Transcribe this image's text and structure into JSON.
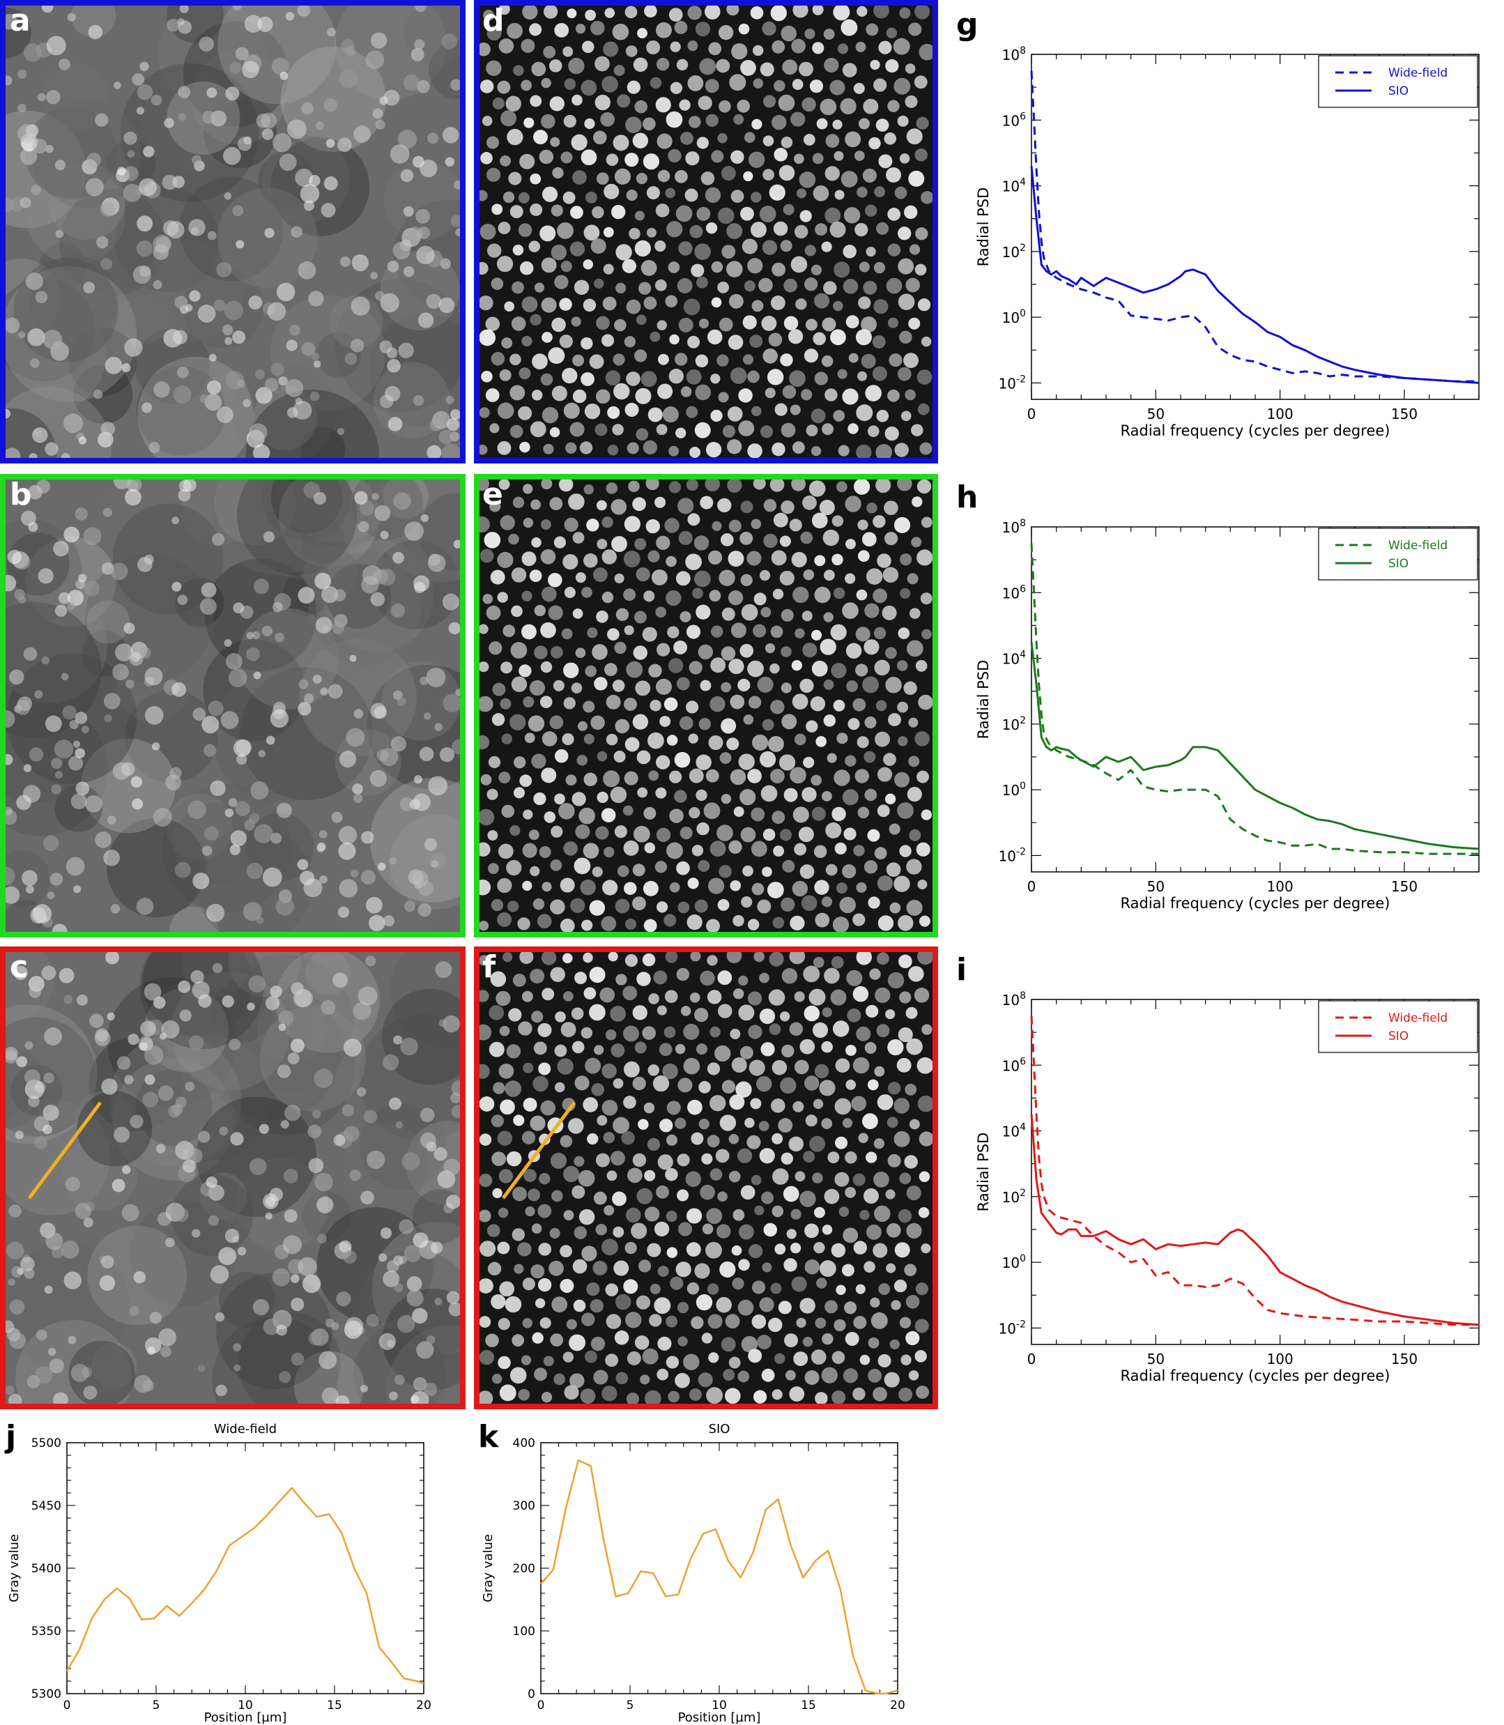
{
  "panels": {
    "a": {
      "label": "a",
      "border": "#1010d8"
    },
    "b": {
      "label": "b",
      "border": "#22d822"
    },
    "c": {
      "label": "c",
      "border": "#e01818"
    },
    "d": {
      "label": "d",
      "border": "#1010d8"
    },
    "e": {
      "label": "e",
      "border": "#22d822"
    },
    "f": {
      "label": "f",
      "border": "#e01818"
    },
    "g": {
      "label": "g"
    },
    "h": {
      "label": "h"
    },
    "i": {
      "label": "i"
    },
    "j": {
      "label": "j"
    },
    "k": {
      "label": "k"
    }
  },
  "profile_line_color": "#f0b020",
  "chart_data": [
    {
      "id": "g",
      "type": "line",
      "color": "#1010d0",
      "xlabel": "Radial frequency (cycles per degree)",
      "ylabel": "Radial PSD",
      "xlim": [
        0,
        180
      ],
      "ylim_log10": [
        -2.5,
        8
      ],
      "yscale": "log",
      "xticks": [
        0,
        50,
        100,
        150
      ],
      "yticks_exp": [
        -2,
        0,
        2,
        4,
        6,
        8
      ],
      "legend_position": "top-right",
      "series": [
        {
          "name": "Wide-field",
          "style": "dashed",
          "x": [
            0,
            1,
            2,
            3,
            4,
            5,
            7,
            10,
            15,
            20,
            25,
            30,
            35,
            40,
            45,
            50,
            55,
            60,
            65,
            70,
            75,
            80,
            85,
            90,
            95,
            100,
            105,
            110,
            115,
            120,
            125,
            130,
            140,
            150,
            160,
            170,
            180
          ],
          "y_log10": [
            7.5,
            6.0,
            4.5,
            3.2,
            2.3,
            1.8,
            1.4,
            1.2,
            1.0,
            0.85,
            0.75,
            0.6,
            0.5,
            0.05,
            0.0,
            -0.05,
            -0.1,
            0.0,
            0.05,
            -0.3,
            -0.9,
            -1.15,
            -1.3,
            -1.35,
            -1.5,
            -1.6,
            -1.7,
            -1.65,
            -1.7,
            -1.8,
            -1.75,
            -1.8,
            -1.8,
            -1.85,
            -1.9,
            -1.95,
            -1.95
          ]
        },
        {
          "name": "SIO",
          "style": "solid",
          "x": [
            0,
            2,
            4,
            6,
            8,
            10,
            12,
            15,
            18,
            20,
            25,
            30,
            35,
            40,
            45,
            50,
            55,
            60,
            62,
            65,
            70,
            75,
            80,
            85,
            90,
            95,
            100,
            105,
            110,
            115,
            120,
            125,
            130,
            140,
            150,
            160,
            170,
            180
          ],
          "y_log10": [
            4.6,
            3.0,
            1.6,
            1.4,
            1.3,
            1.4,
            1.25,
            1.15,
            1.0,
            1.2,
            0.95,
            1.2,
            1.05,
            0.9,
            0.75,
            0.85,
            1.0,
            1.25,
            1.4,
            1.45,
            1.3,
            0.8,
            0.45,
            0.1,
            -0.15,
            -0.45,
            -0.6,
            -0.85,
            -1.0,
            -1.2,
            -1.35,
            -1.5,
            -1.6,
            -1.75,
            -1.85,
            -1.9,
            -1.95,
            -2.0
          ]
        }
      ]
    },
    {
      "id": "h",
      "type": "line",
      "color": "#1a7a1a",
      "xlabel": "Radial frequency (cycles per degree)",
      "ylabel": "Radial PSD",
      "xlim": [
        0,
        180
      ],
      "ylim_log10": [
        -2.5,
        8
      ],
      "yscale": "log",
      "xticks": [
        0,
        50,
        100,
        150
      ],
      "yticks_exp": [
        -2,
        0,
        2,
        4,
        6,
        8
      ],
      "legend_position": "top-right",
      "series": [
        {
          "name": "Wide-field",
          "style": "dashed",
          "x": [
            0,
            1,
            2,
            3,
            4,
            5,
            7,
            10,
            15,
            20,
            25,
            30,
            35,
            40,
            45,
            50,
            55,
            60,
            65,
            70,
            75,
            80,
            85,
            90,
            95,
            100,
            105,
            110,
            115,
            120,
            125,
            130,
            140,
            150,
            160,
            170,
            180
          ],
          "y_log10": [
            7.5,
            6.0,
            4.5,
            3.2,
            2.3,
            1.7,
            1.4,
            1.2,
            1.0,
            0.9,
            0.75,
            0.5,
            0.3,
            0.6,
            0.1,
            0.0,
            -0.05,
            0.0,
            0.0,
            0.0,
            -0.2,
            -0.9,
            -1.2,
            -1.4,
            -1.55,
            -1.6,
            -1.7,
            -1.7,
            -1.65,
            -1.8,
            -1.8,
            -1.85,
            -1.9,
            -1.9,
            -1.95,
            -1.95,
            -1.95
          ]
        },
        {
          "name": "SIO",
          "style": "solid",
          "x": [
            0,
            2,
            4,
            6,
            8,
            10,
            12,
            15,
            18,
            20,
            25,
            30,
            35,
            40,
            45,
            50,
            55,
            60,
            62,
            65,
            70,
            75,
            80,
            85,
            90,
            95,
            100,
            105,
            110,
            115,
            120,
            125,
            130,
            140,
            150,
            160,
            170,
            180
          ],
          "y_log10": [
            4.5,
            3.2,
            1.6,
            1.3,
            1.2,
            1.3,
            1.25,
            1.2,
            1.0,
            0.9,
            0.7,
            1.0,
            0.85,
            1.0,
            0.6,
            0.7,
            0.75,
            0.9,
            1.0,
            1.3,
            1.3,
            1.2,
            0.8,
            0.4,
            0.0,
            -0.2,
            -0.4,
            -0.55,
            -0.75,
            -0.9,
            -0.95,
            -1.05,
            -1.2,
            -1.35,
            -1.5,
            -1.65,
            -1.75,
            -1.8
          ]
        }
      ]
    },
    {
      "id": "i",
      "type": "line",
      "color": "#e01818",
      "xlabel": "Radial frequency (cycles per degree)",
      "ylabel": "Radial PSD",
      "xlim": [
        0,
        180
      ],
      "ylim_log10": [
        -2.5,
        8
      ],
      "yscale": "log",
      "xticks": [
        0,
        50,
        100,
        150
      ],
      "yticks_exp": [
        -2,
        0,
        2,
        4,
        6,
        8
      ],
      "legend_position": "top-right",
      "series": [
        {
          "name": "Wide-field",
          "style": "dashed",
          "x": [
            0,
            1,
            2,
            3,
            4,
            5,
            7,
            10,
            15,
            20,
            25,
            30,
            35,
            40,
            45,
            50,
            55,
            60,
            65,
            70,
            75,
            80,
            85,
            90,
            95,
            100,
            105,
            110,
            120,
            130,
            140,
            150,
            160,
            170,
            180
          ],
          "y_log10": [
            7.5,
            6.0,
            4.5,
            3.2,
            2.4,
            2.0,
            1.6,
            1.4,
            1.3,
            1.2,
            0.8,
            0.5,
            0.3,
            0.0,
            0.1,
            -0.4,
            -0.3,
            -0.7,
            -0.7,
            -0.75,
            -0.7,
            -0.5,
            -0.65,
            -1.1,
            -1.45,
            -1.55,
            -1.6,
            -1.65,
            -1.7,
            -1.75,
            -1.8,
            -1.8,
            -1.85,
            -1.9,
            -1.9
          ]
        },
        {
          "name": "SIO",
          "style": "solid",
          "x": [
            0,
            2,
            4,
            6,
            8,
            10,
            12,
            15,
            18,
            20,
            25,
            30,
            35,
            40,
            45,
            50,
            55,
            60,
            65,
            70,
            75,
            80,
            83,
            85,
            90,
            95,
            100,
            105,
            110,
            115,
            120,
            125,
            130,
            140,
            150,
            160,
            170,
            180
          ],
          "y_log10": [
            4.5,
            2.5,
            1.5,
            1.3,
            1.1,
            0.9,
            0.85,
            1.0,
            1.0,
            0.8,
            0.8,
            0.95,
            0.7,
            0.55,
            0.7,
            0.4,
            0.55,
            0.5,
            0.55,
            0.6,
            0.55,
            0.9,
            1.0,
            0.95,
            0.6,
            0.2,
            -0.3,
            -0.5,
            -0.7,
            -0.85,
            -1.05,
            -1.2,
            -1.3,
            -1.5,
            -1.65,
            -1.75,
            -1.85,
            -1.9
          ]
        }
      ]
    },
    {
      "id": "j",
      "type": "line",
      "title": "Wide-field",
      "color": "#f0a030",
      "xlabel": "Position [µm]",
      "ylabel": "Gray value",
      "xlim": [
        0,
        20
      ],
      "ylim": [
        5300,
        5500
      ],
      "xticks": [
        0,
        5,
        10,
        15,
        20
      ],
      "yticks": [
        5300,
        5350,
        5400,
        5450,
        5500
      ],
      "series": [
        {
          "x": [
            0,
            0.7,
            1.4,
            2.1,
            2.8,
            3.5,
            4.2,
            4.9,
            5.6,
            6.3,
            7.0,
            7.7,
            8.4,
            9.1,
            9.8,
            10.5,
            11.2,
            11.9,
            12.6,
            13.3,
            14.0,
            14.7,
            15.4,
            16.1,
            16.8,
            17.5,
            18.2,
            18.9,
            19.6,
            20.0
          ],
          "y": [
            5318,
            5335,
            5360,
            5375,
            5384,
            5376,
            5359,
            5360,
            5370,
            5362,
            5372,
            5383,
            5398,
            5418,
            5425,
            5432,
            5442,
            5453,
            5464,
            5452,
            5441,
            5443,
            5428,
            5400,
            5380,
            5337,
            5325,
            5312,
            5310,
            5308
          ]
        }
      ]
    },
    {
      "id": "k",
      "type": "line",
      "title": "SIO",
      "color": "#f0a030",
      "xlabel": "Position [µm]",
      "ylabel": "Gray value",
      "xlim": [
        0,
        20
      ],
      "ylim": [
        0,
        400
      ],
      "xticks": [
        0,
        5,
        10,
        15,
        20
      ],
      "yticks": [
        0,
        100,
        200,
        300,
        400
      ],
      "series": [
        {
          "x": [
            0,
            0.7,
            1.4,
            2.1,
            2.8,
            3.5,
            4.2,
            4.9,
            5.6,
            6.3,
            7.0,
            7.7,
            8.4,
            9.1,
            9.8,
            10.5,
            11.2,
            11.9,
            12.6,
            13.3,
            14.0,
            14.7,
            15.4,
            16.1,
            16.8,
            17.5,
            18.2,
            18.9,
            19.3,
            20.0
          ],
          "y": [
            175,
            198,
            295,
            372,
            363,
            248,
            155,
            160,
            195,
            192,
            155,
            158,
            215,
            255,
            262,
            212,
            185,
            225,
            293,
            310,
            237,
            185,
            212,
            228,
            165,
            60,
            5,
            0,
            0,
            5
          ]
        }
      ]
    }
  ]
}
